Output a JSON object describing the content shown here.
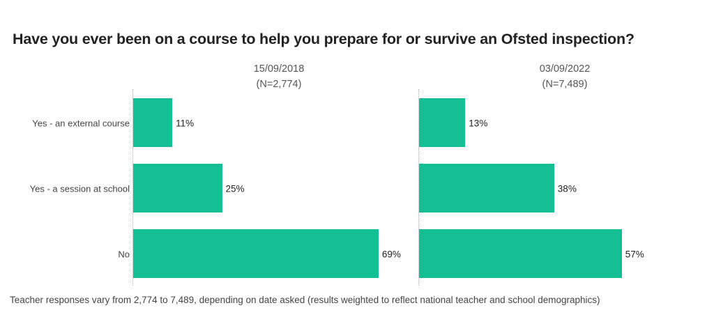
{
  "chart_data": {
    "type": "bar",
    "orientation": "horizontal",
    "title": "Have you ever been on a course to help you prepare for or survive an Ofsted inspection?",
    "categories": [
      "Yes - an external course",
      "Yes - a session at school",
      "No"
    ],
    "panels": [
      {
        "date": "15/09/2018",
        "n": "(N=2,774)",
        "values": [
          11,
          25,
          69
        ],
        "labels": [
          "11%",
          "25%",
          "69%"
        ]
      },
      {
        "date": "03/09/2022",
        "n": "(N=7,489)",
        "values": [
          13,
          38,
          57
        ],
        "labels": [
          "13%",
          "38%",
          "57%"
        ]
      }
    ],
    "bar_color": "#13bf93",
    "footnote": "Teacher responses vary from 2,774 to 7,489, depending on date asked (results weighted to reflect national teacher and school demographics)"
  }
}
